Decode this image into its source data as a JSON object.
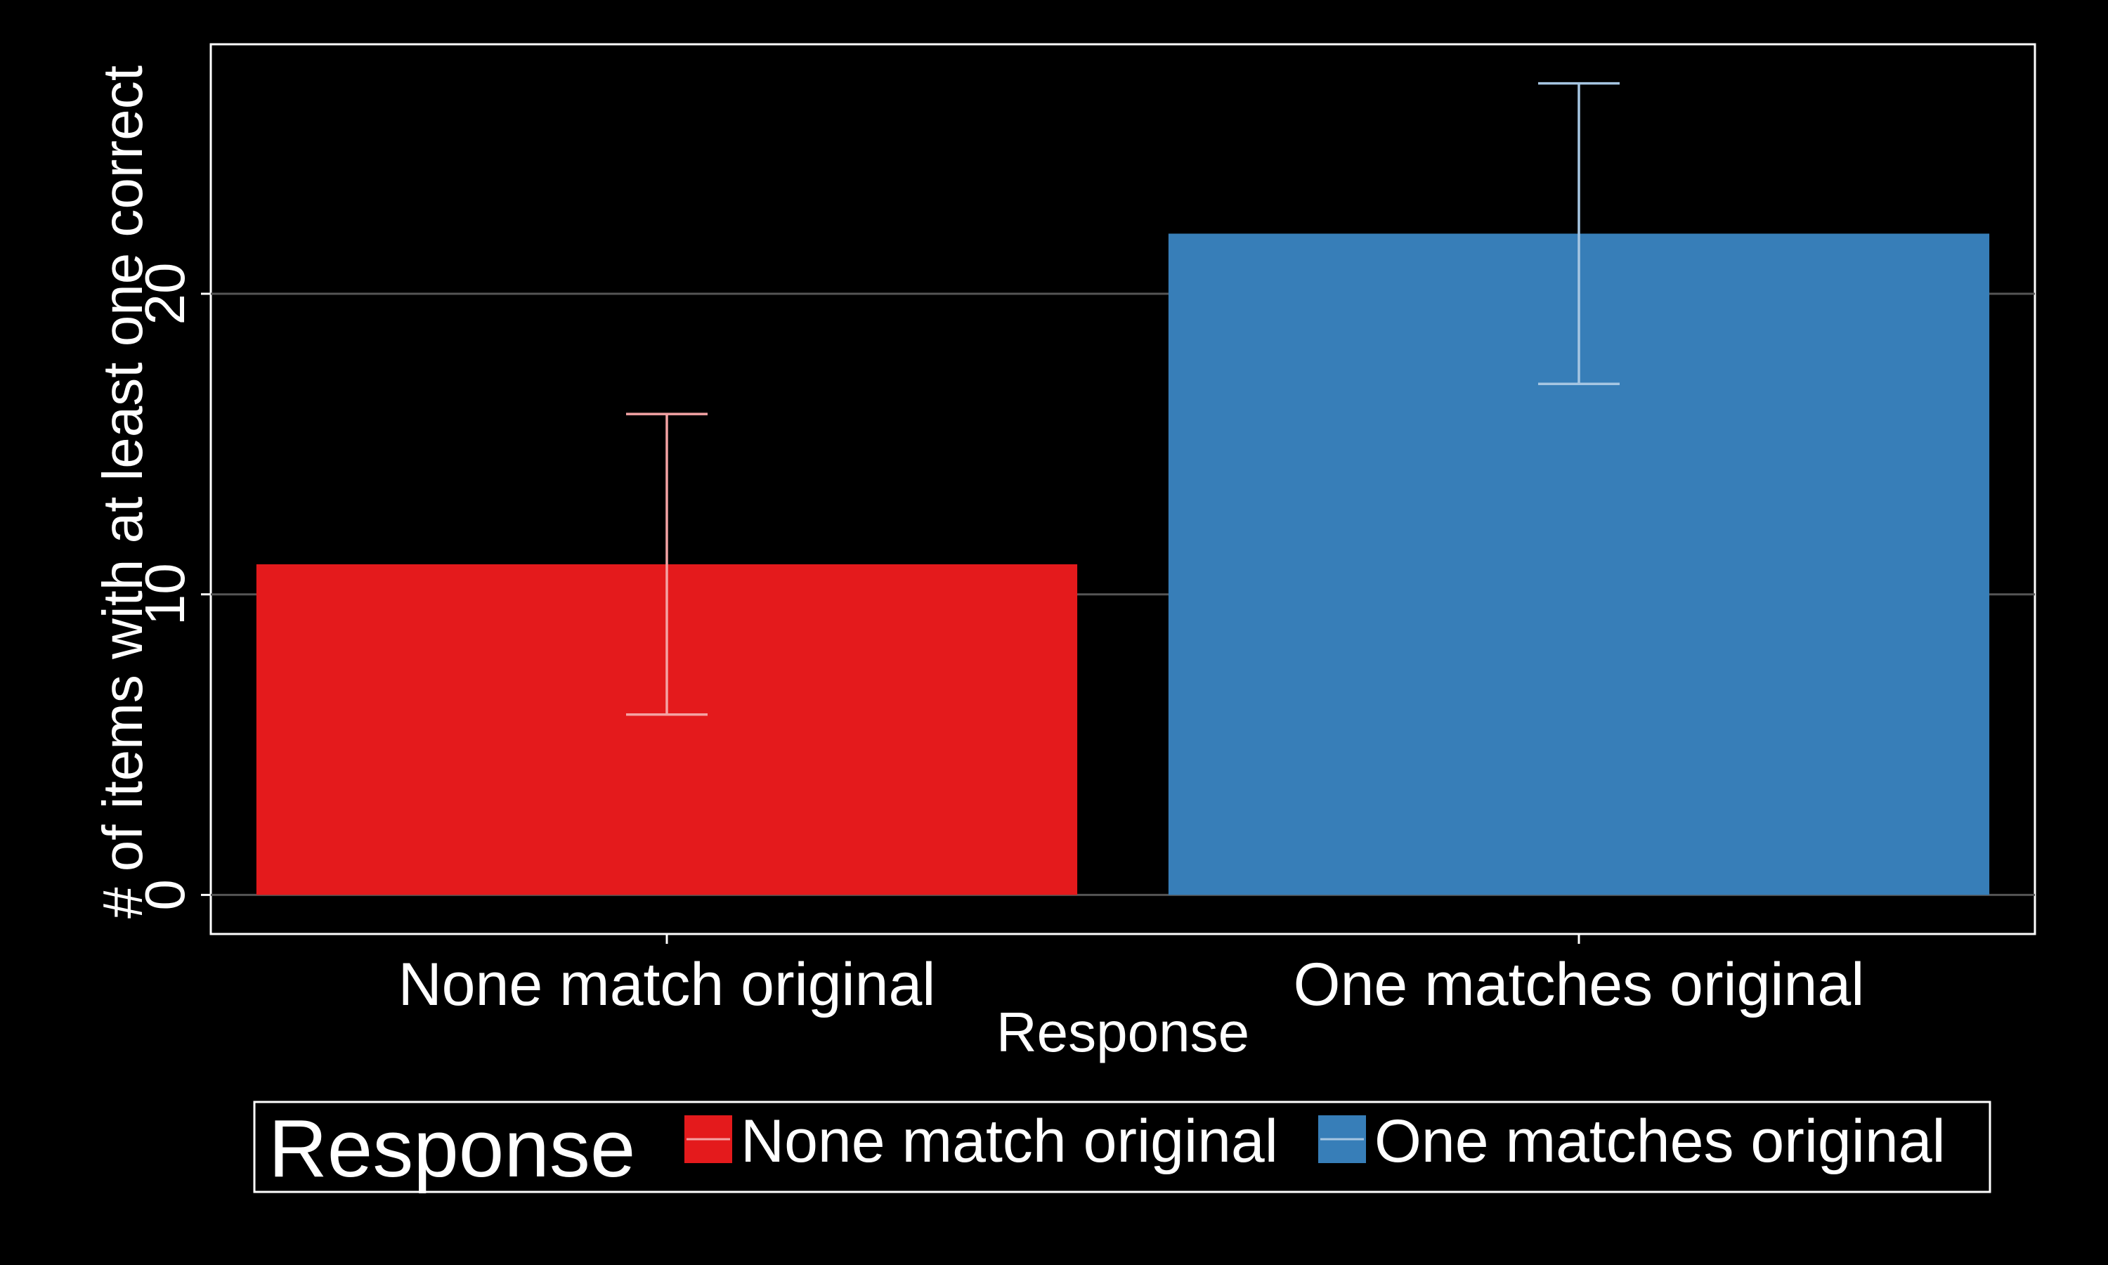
{
  "chart_data": {
    "type": "bar",
    "title": "",
    "xlabel": "Response",
    "ylabel": "# of items with at least one correct",
    "categories": [
      "None match original",
      "One matches original"
    ],
    "values": [
      11,
      22
    ],
    "error_low": [
      6,
      17
    ],
    "error_high": [
      16,
      27
    ],
    "ylim": [
      -1.3,
      28.3
    ],
    "yticks": [
      "0",
      "10",
      "20"
    ],
    "grid": true,
    "legend": {
      "title": "Response",
      "placement": "bottom",
      "entries": [
        "None match original",
        "One matches original"
      ]
    },
    "colors": {
      "background": "#000000",
      "grid": "#555555",
      "axis": "#ffffff",
      "bars": [
        "#e41a1c",
        "#377eb8"
      ],
      "error_bars": [
        "#f4a3a4",
        "#a6c6e2"
      ]
    }
  }
}
